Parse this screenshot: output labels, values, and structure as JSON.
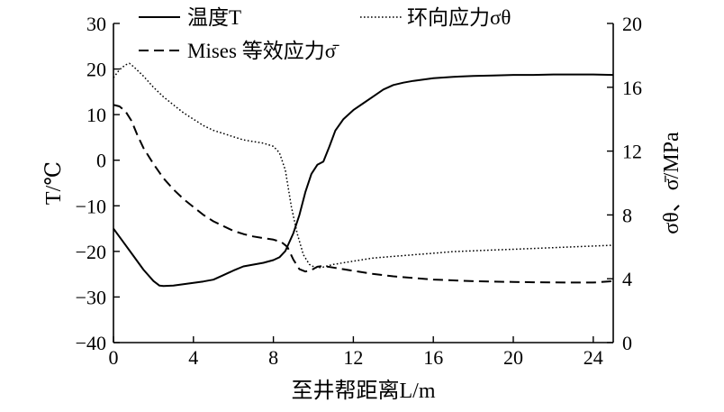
{
  "chart_data": {
    "type": "line",
    "xlabel": "至井帮距离L/m",
    "ylabel_left": "T/℃",
    "ylabel_right": "σθ、σ̄/MPa",
    "xlim": [
      0,
      25
    ],
    "ylim_left": [
      -40,
      30
    ],
    "ylim_right": [
      0,
      20
    ],
    "x_ticks": [
      "0",
      "4",
      "8",
      "12",
      "16",
      "20",
      "24"
    ],
    "y_left_ticks": [
      "30",
      "20",
      "10",
      "0",
      "−10",
      "−20",
      "−30",
      "−40"
    ],
    "y_right_ticks": [
      "20",
      "16",
      "12",
      "8",
      "4",
      "0"
    ],
    "grid": false,
    "legend": [
      {
        "label": "温度T",
        "style": "solid"
      },
      {
        "label": "环向应力σθ",
        "style": "dotted"
      },
      {
        "label": "Mises 等效应力σ̄",
        "style": "dashed"
      }
    ],
    "series": [
      {
        "name": "温度T",
        "axis": "left",
        "style": "solid",
        "x": [
          0,
          0.5,
          1,
          1.5,
          2,
          2.3,
          2.5,
          3,
          3.5,
          4,
          4.5,
          5,
          5.5,
          6,
          6.5,
          7,
          7.5,
          8,
          8.3,
          8.6,
          9,
          9.3,
          9.6,
          9.9,
          10.2,
          10.5,
          10.8,
          11.1,
          11.5,
          12,
          12.5,
          13,
          13.5,
          14,
          14.5,
          15,
          16,
          17,
          18,
          19,
          20,
          21,
          22,
          23,
          24,
          25
        ],
        "y": [
          -15,
          -18,
          -21,
          -24,
          -26.5,
          -27.5,
          -27.6,
          -27.5,
          -27.2,
          -26.9,
          -26.6,
          -26.2,
          -25.2,
          -24.2,
          -23.3,
          -22.9,
          -22.5,
          -21.9,
          -21.3,
          -19.9,
          -16,
          -12,
          -7,
          -3,
          -1,
          -0.3,
          3,
          6.5,
          9,
          11,
          12.5,
          14,
          15.5,
          16.5,
          17,
          17.4,
          18,
          18.3,
          18.5,
          18.6,
          18.7,
          18.7,
          18.8,
          18.8,
          18.8,
          18.7
        ]
      },
      {
        "name": "环向应力σθ",
        "axis": "right",
        "style": "dotted",
        "x": [
          0,
          0.3,
          0.6,
          0.8,
          1,
          1.5,
          2,
          2.5,
          3,
          3.5,
          4,
          4.5,
          5,
          5.5,
          6,
          6.5,
          7,
          7.5,
          8,
          8.3,
          8.6,
          8.9,
          9.2,
          9.5,
          9.8,
          10.1,
          10.4,
          10.7,
          11,
          12,
          13,
          14,
          15,
          16,
          17,
          18,
          19,
          20,
          21,
          22,
          23,
          24,
          25
        ],
        "y": [
          16.6,
          17.1,
          17.4,
          17.5,
          17.3,
          16.7,
          16.0,
          15.4,
          14.9,
          14.4,
          14.0,
          13.6,
          13.3,
          13.1,
          12.9,
          12.7,
          12.6,
          12.5,
          12.3,
          11.9,
          10.8,
          8.5,
          6.8,
          5.5,
          4.9,
          4.7,
          4.7,
          4.8,
          4.9,
          5.1,
          5.3,
          5.4,
          5.5,
          5.6,
          5.7,
          5.75,
          5.8,
          5.85,
          5.9,
          5.95,
          6.0,
          6.05,
          6.1
        ]
      },
      {
        "name": "Mises 等效应力σ̄",
        "axis": "right",
        "style": "dashed",
        "x": [
          0,
          0.3,
          0.6,
          0.9,
          1.2,
          1.5,
          2,
          2.5,
          3,
          3.5,
          4,
          4.5,
          5,
          5.5,
          6,
          6.5,
          7,
          7.5,
          8,
          8.4,
          8.7,
          9,
          9.3,
          9.6,
          9.9,
          10.2,
          10.5,
          11,
          12,
          13,
          14,
          15,
          16,
          17,
          18,
          19,
          20,
          21,
          22,
          23,
          24,
          25
        ],
        "y": [
          14.9,
          14.8,
          14.5,
          13.9,
          13.0,
          12.2,
          11.2,
          10.3,
          9.6,
          9.0,
          8.5,
          8.0,
          7.6,
          7.3,
          7.0,
          6.8,
          6.65,
          6.55,
          6.45,
          6.3,
          6.0,
          5.2,
          4.6,
          4.45,
          4.55,
          4.75,
          4.8,
          4.7,
          4.5,
          4.3,
          4.15,
          4.05,
          3.95,
          3.9,
          3.85,
          3.82,
          3.8,
          3.78,
          3.77,
          3.76,
          3.76,
          3.85
        ]
      }
    ]
  }
}
